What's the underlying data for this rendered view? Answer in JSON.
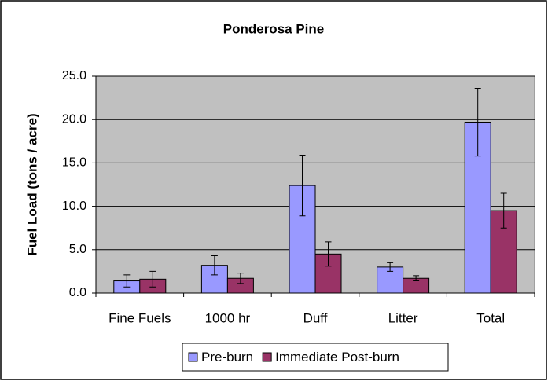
{
  "chart_data": {
    "type": "bar",
    "title": "Ponderosa Pine",
    "y_label": "Fuel Load (tons / acre)",
    "categories": [
      "Fine Fuels",
      "1000 hr",
      "Duff",
      "Litter",
      "Total"
    ],
    "series": [
      {
        "name": "Pre-burn",
        "color": "#9999ff",
        "values": [
          1.4,
          3.2,
          12.4,
          3.0,
          19.7
        ],
        "errors": [
          0.7,
          1.1,
          3.5,
          0.5,
          3.9
        ]
      },
      {
        "name": "Immediate Post-burn",
        "color": "#993366",
        "values": [
          1.6,
          1.7,
          4.5,
          1.7,
          9.5
        ],
        "errors": [
          0.9,
          0.6,
          1.4,
          0.3,
          2.0
        ]
      }
    ],
    "ylim": [
      0,
      25
    ],
    "yticks": [
      {
        "value": 0,
        "label": "0.0"
      },
      {
        "value": 5,
        "label": "5.0"
      },
      {
        "value": 10,
        "label": "10.0"
      },
      {
        "value": 15,
        "label": "15.0"
      },
      {
        "value": 20,
        "label": "20.0"
      },
      {
        "value": 25,
        "label": "25.0"
      }
    ],
    "grid": true,
    "legend": "bottom"
  }
}
